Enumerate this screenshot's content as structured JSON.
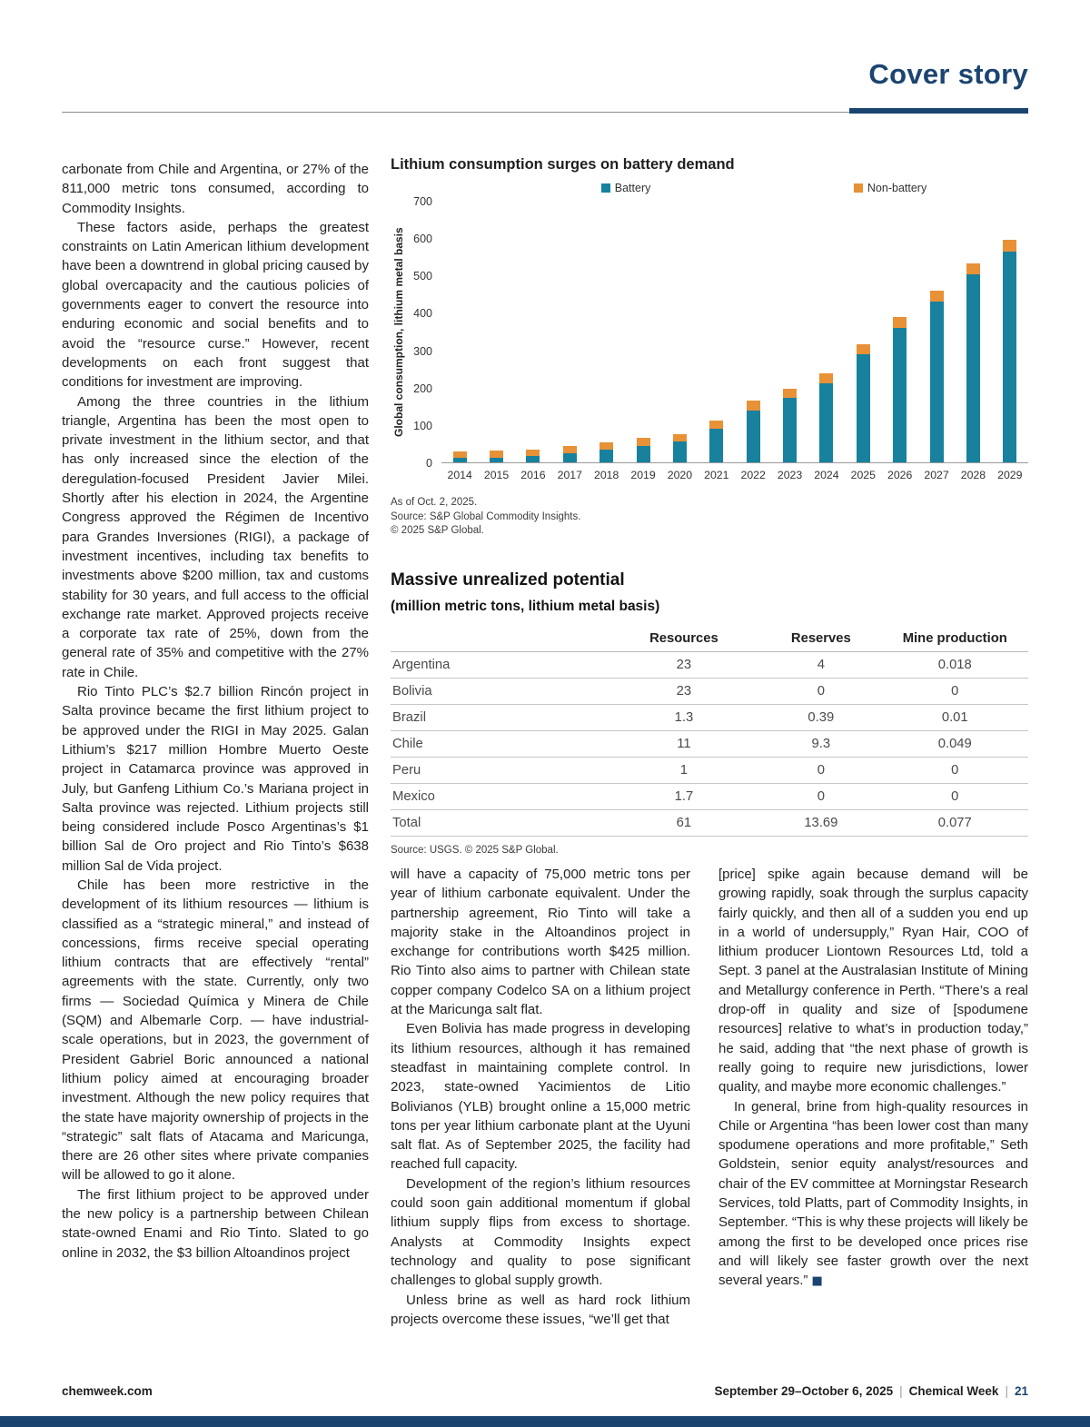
{
  "colors": {
    "navy": "#1b4470",
    "battery": "#17819e",
    "non_battery": "#e89137"
  },
  "header": {
    "title": "Cover story"
  },
  "chart_data": {
    "type": "bar",
    "stacked": true,
    "title": "Lithium consumption surges on battery demand",
    "ylabel": "Global consumption, lithium metal basis",
    "xlabel": "",
    "ylim": [
      0,
      700
    ],
    "ytick_step": 100,
    "legend_position": "top",
    "grid": false,
    "categories": [
      "2014",
      "2015",
      "2016",
      "2017",
      "2018",
      "2019",
      "2020",
      "2021",
      "2022",
      "2023",
      "2024",
      "2025",
      "2026",
      "2027",
      "2028",
      "2029"
    ],
    "series": [
      {
        "name": "Battery",
        "values": [
          12,
          13,
          17,
          25,
          35,
          45,
          55,
          90,
          140,
          172,
          212,
          290,
          362,
          432,
          505,
          565
        ]
      },
      {
        "name": "Non-battery",
        "values": [
          18,
          18,
          18,
          18,
          18,
          20,
          20,
          22,
          25,
          26,
          26,
          27,
          28,
          30,
          30,
          32
        ]
      }
    ],
    "notes": [
      "As of Oct. 2, 2025.",
      "Source: S&P Global Commodity Insights.",
      "© 2025 S&P Global."
    ]
  },
  "table": {
    "title": "Massive unrealized potential",
    "subtitle": "(million metric tons, lithium metal basis)",
    "columns": [
      "",
      "Resources",
      "Reserves",
      "Mine production"
    ],
    "rows": [
      {
        "name": "Argentina",
        "resources": "23",
        "reserves": "4",
        "production": "0.018"
      },
      {
        "name": "Bolivia",
        "resources": "23",
        "reserves": "0",
        "production": "0"
      },
      {
        "name": "Brazil",
        "resources": "1.3",
        "reserves": "0.39",
        "production": "0.01"
      },
      {
        "name": "Chile",
        "resources": "11",
        "reserves": "9.3",
        "production": "0.049"
      },
      {
        "name": "Peru",
        "resources": "1",
        "reserves": "0",
        "production": "0"
      },
      {
        "name": "Mexico",
        "resources": "1.7",
        "reserves": "0",
        "production": "0"
      },
      {
        "name": "Total",
        "resources": "61",
        "reserves": "13.69",
        "production": "0.077"
      }
    ],
    "source": "Source: USGS. © 2025 S&P Global."
  },
  "article": {
    "left": [
      "carbonate from Chile and Argentina, or 27% of the 811,000 metric tons consumed, according to Commodity Insights.",
      "These factors aside, perhaps the greatest constraints on Latin American lithium development have been a downtrend in global pricing caused by global overcapacity and the cautious policies of governments eager to convert the resource into enduring economic and social benefits and to avoid the “resource curse.” However, recent developments on each front suggest that conditions for investment are improving.",
      "Among the three countries in the lithium triangle, Argentina has been the most open to private investment in the lithium sector, and that has only increased since the election of the deregulation-focused President Javier Milei. Shortly after his election in 2024, the Argentine Congress approved the Régimen de Incentivo para Grandes Inversiones (RIGI), a package of investment incentives, including tax benefits to investments above $200 million, tax and customs stability for 30 years, and full access to the official exchange rate market. Approved projects receive a corporate tax rate of 25%, down from the general rate of 35% and competitive with the 27% rate in Chile.",
      "Rio Tinto PLC’s $2.7 billion Rincón project in Salta province became the first lithium project to be approved under the RIGI in May 2025. Galan Lithium’s $217 million Hombre Muerto Oeste project in Catamarca province was approved in July, but Ganfeng Lithium Co.’s Mariana project in Salta province was rejected. Lithium projects still being considered include Posco Argentinas’s $1 billion Sal de Oro project and Rio Tinto’s $638 million Sal de Vida project.",
      "Chile has been more restrictive in the development of its lithium resources — lithium is classified as a “strategic mineral,” and instead of concessions, firms receive special operating lithium contracts that are effectively “rental” agreements with the state. Currently, only two firms — Sociedad Química y Minera de Chile (SQM) and Albemarle Corp. — have industrial-scale operations, but in 2023, the government of President Gabriel Boric announced a national lithium policy aimed at encouraging broader investment. Although the new policy requires that the state have majority ownership of projects in the “strategic” salt flats of Atacama and Maricunga, there are 26 other sites where private companies will be allowed to go it alone.",
      "The first lithium project to be approved under the new policy is a partnership between Chilean state-owned Enami and Rio Tinto. Slated to go online in 2032, the $3 billion Altoandinos project"
    ],
    "mid": [
      "will have a capacity of 75,000 metric tons per year of lithium carbonate equivalent. Under the partnership agreement, Rio Tinto will take a majority stake in the Altoandinos project in exchange for contributions worth $425 million. Rio Tinto also aims to partner with Chilean state copper company Codelco SA on a lithium project at the Maricunga salt flat.",
      "Even Bolivia has made progress in developing its lithium resources, although it has remained steadfast in maintaining complete control. In 2023, state-owned Yacimientos de Litio Bolivianos (YLB) brought online a 15,000 metric tons per year lithium carbonate plant at the Uyuni salt flat. As of September 2025, the facility had reached full capacity.",
      "Development of the region’s lithium resources could soon gain additional momentum if global lithium supply flips from excess to shortage. Analysts at Commodity Insights expect technology and quality to pose significant challenges to global supply growth.",
      "Unless brine as well as hard rock lithium projects overcome these issues, “we’ll get that"
    ],
    "right": [
      "[price] spike again because demand will be growing rapidly, soak through the surplus capacity fairly quickly, and then all of a sudden you end up in a world of undersupply,” Ryan Hair, COO of lithium producer Liontown Resources Ltd, told a Sept. 3 panel at the Australasian Institute of Mining and Metallurgy conference in Perth. “There’s a real drop-off in quality and size of [spodumene resources] relative to what’s in production today,” he said, adding that “the next phase of growth is really going to require new jurisdictions, lower quality, and maybe more economic challenges.”",
      "In general, brine from high-quality resources in Chile or Argentina “has been lower cost than many spodumene operations and more profitable,” Seth Goldstein, senior equity analyst/resources and chair of the EV committee at Morningstar Research Services, told Platts, part of Commodity Insights, in September. “This is why these projects will likely be among the first to be developed once prices rise and will likely see faster growth over the next several years.”"
    ],
    "end_mark": "■"
  },
  "footer": {
    "site": "chemweek.com",
    "date": "September 29–October 6, 2025",
    "separator": "|",
    "publication": "Chemical Week",
    "page": "21"
  }
}
